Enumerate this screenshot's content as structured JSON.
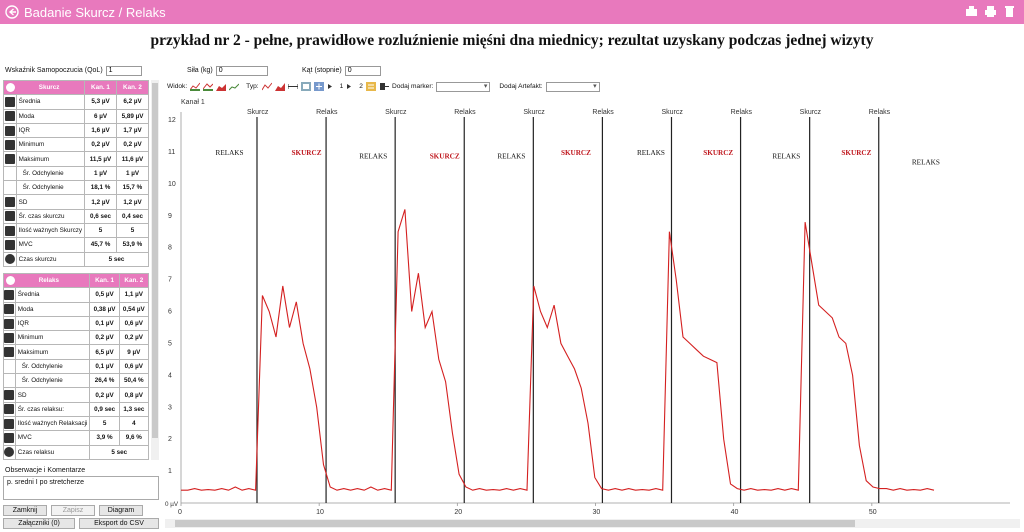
{
  "window": {
    "title": "Badanie Skurcz / Relaks"
  },
  "heading": "przykład nr 2 - pełne, prawidłowe rozluźnienie mięśni dna miednicy; rezultat uzyskany podczas jednej wizyty",
  "fields": {
    "qol_label": "Wskaźnik Samopoczucia (QoL)",
    "qol_value": "1",
    "force_label": "Siła (kg)",
    "force_value": "0",
    "angle_label": "Kąt (stopnie)",
    "angle_value": "0"
  },
  "contraction": {
    "header": [
      "Skurcz",
      "Kan. 1",
      "Kan. 2"
    ],
    "rows": [
      {
        "label": "Średnia",
        "c1": "5,3 µV",
        "c2": "6,2 µV",
        "icon": "mean-icon"
      },
      {
        "label": "Moda",
        "c1": "6 µV",
        "c2": "5,89 µV",
        "icon": "mode-icon"
      },
      {
        "label": "IQR",
        "c1": "1,6 µV",
        "c2": "1,7 µV",
        "icon": "iqr-icon"
      },
      {
        "label": "Minimum",
        "c1": "0,2 µV",
        "c2": "0,2 µV",
        "icon": "minimum-icon"
      },
      {
        "label": "Maksimum",
        "c1": "11,5 µV",
        "c2": "11,6 µV",
        "icon": "maximum-icon"
      },
      {
        "label": "Śr. Odchylenie",
        "c1": "1 µV",
        "c2": "1 µV",
        "icon": ""
      },
      {
        "label": "Śr. Odchylenie",
        "c1": "18,1 %",
        "c2": "15,7 %",
        "icon": ""
      },
      {
        "label": "SD",
        "c1": "1,2 µV",
        "c2": "1,2 µV",
        "icon": "sd-icon"
      },
      {
        "label": "Śr. czas skurczu",
        "c1": "0,6 sec",
        "c2": "0,4 sec",
        "icon": "duration-icon"
      },
      {
        "label": "Ilość ważnych Skurczy",
        "c1": "5",
        "c2": "5",
        "icon": "count-icon"
      },
      {
        "label": "MVC",
        "c1": "45,7 %",
        "c2": "53,9 %",
        "icon": "percent-icon"
      }
    ],
    "time_label": "Czas skurczu",
    "time_value": "5 sec"
  },
  "relax": {
    "header": [
      "Relaks",
      "Kan. 1",
      "Kan. 2"
    ],
    "rows": [
      {
        "label": "Średnia",
        "c1": "0,5 µV",
        "c2": "1,1 µV",
        "icon": "mean-icon"
      },
      {
        "label": "Moda",
        "c1": "0,38 µV",
        "c2": "0,54 µV",
        "icon": "mode-icon"
      },
      {
        "label": "IQR",
        "c1": "0,1 µV",
        "c2": "0,6 µV",
        "icon": "iqr-icon"
      },
      {
        "label": "Minimum",
        "c1": "0,2 µV",
        "c2": "0,2 µV",
        "icon": "minimum-icon"
      },
      {
        "label": "Maksimum",
        "c1": "6,5 µV",
        "c2": "9 µV",
        "icon": "maximum-icon"
      },
      {
        "label": "Śr. Odchylenie",
        "c1": "0,1 µV",
        "c2": "0,6 µV",
        "icon": ""
      },
      {
        "label": "Śr. Odchylenie",
        "c1": "26,4 %",
        "c2": "50,4 %",
        "icon": ""
      },
      {
        "label": "SD",
        "c1": "0,2 µV",
        "c2": "0,8 µV",
        "icon": "sd-icon"
      },
      {
        "label": "Śr. czas relaksu:",
        "c1": "0,9 sec",
        "c2": "1,3 sec",
        "icon": "duration-icon"
      },
      {
        "label": "Ilość ważnych Relaksacji",
        "c1": "5",
        "c2": "4",
        "icon": "count-icon"
      },
      {
        "label": "MVC",
        "c1": "3,9 %",
        "c2": "9,6 %",
        "icon": "percent-icon"
      }
    ],
    "time_label": "Czas relaksu",
    "time_value": "5 sec"
  },
  "observations": {
    "label": "Obserwacje i Komentarze",
    "text": "p. sredni I po stretcherze"
  },
  "buttons": {
    "close": "Zamknij",
    "save": "Zapisz",
    "diagram": "Diagram",
    "attachments": "Załączniki (0)",
    "export": "Eksport do CSV"
  },
  "toolbar": {
    "view_label": "Widok:",
    "type_label": "Typ:",
    "ch1": "1",
    "ch2": "2",
    "marker_label": "Dodaj marker:",
    "artifact_label": "Dodaj Artefakt:"
  },
  "chart_data": {
    "type": "line",
    "channel_label": "Kanał 1",
    "xlim": [
      0,
      60
    ],
    "ylim": [
      0,
      12
    ],
    "x_ticks": [
      0,
      10,
      20,
      30,
      40,
      50
    ],
    "y_ticks": [
      0,
      1,
      2,
      3,
      4,
      5,
      6,
      7,
      8,
      9,
      10,
      11,
      12
    ],
    "y_unit_label": "0 µV",
    "accent_color": "#d42020",
    "markers": [
      {
        "label": "Skurcz",
        "x": 5.5
      },
      {
        "label": "Relaks",
        "x": 10.5
      },
      {
        "label": "Skurcz",
        "x": 15.5
      },
      {
        "label": "Relaks",
        "x": 20.5
      },
      {
        "label": "Skurcz",
        "x": 25.5
      },
      {
        "label": "Relaks",
        "x": 30.5
      },
      {
        "label": "Skurcz",
        "x": 35.5
      },
      {
        "label": "Relaks",
        "x": 40.5
      },
      {
        "label": "Skurcz",
        "x": 45.5
      },
      {
        "label": "Relaks",
        "x": 50.5
      }
    ],
    "annotations": [
      {
        "text": "RELAKS",
        "x": 2.5,
        "y": 10.9,
        "color": "#111"
      },
      {
        "text": "SKURCZ",
        "x": 8,
        "y": 10.9,
        "color": "#c0181f"
      },
      {
        "text": "RELAKS",
        "x": 12.9,
        "y": 10.8,
        "color": "#111"
      },
      {
        "text": "SKURCZ",
        "x": 18,
        "y": 10.8,
        "color": "#c0181f"
      },
      {
        "text": "RELAKS",
        "x": 22.9,
        "y": 10.8,
        "color": "#111"
      },
      {
        "text": "SKURCZ",
        "x": 27.5,
        "y": 10.9,
        "color": "#c0181f"
      },
      {
        "text": "RELAKS",
        "x": 33,
        "y": 10.9,
        "color": "#111"
      },
      {
        "text": "SKURCZ",
        "x": 37.8,
        "y": 10.9,
        "color": "#c0181f"
      },
      {
        "text": "RELAKS",
        "x": 42.8,
        "y": 10.8,
        "color": "#111"
      },
      {
        "text": "SKURCZ",
        "x": 47.8,
        "y": 10.9,
        "color": "#c0181f"
      },
      {
        "text": "RELAKS",
        "x": 52.9,
        "y": 10.6,
        "color": "#111"
      }
    ],
    "series": [
      {
        "values": [
          0.4,
          0.4,
          0.45,
          0.4,
          0.42,
          0.4,
          0.45,
          0.4,
          0.5,
          0.4,
          0.45,
          0.4,
          6.5,
          6.0,
          5.2,
          6.8,
          5.5,
          6.3,
          5.0,
          4.2,
          3.0,
          1.2,
          0.5,
          0.4,
          0.45,
          0.4,
          0.45,
          0.4,
          0.5,
          0.4,
          0.45,
          0.4,
          8.5,
          9.2,
          6.0,
          7.2,
          5.5,
          6.0,
          4.5,
          3.8,
          2.2,
          0.9,
          0.5,
          0.4,
          0.45,
          0.4,
          0.42,
          0.4,
          0.45,
          0.4,
          0.45,
          0.4,
          6.8,
          6.0,
          5.5,
          6.2,
          5.0,
          4.6,
          4.2,
          3.6,
          2.5,
          0.8,
          0.45,
          0.4,
          0.45,
          0.4,
          0.45,
          0.4,
          0.42,
          0.4,
          0.45,
          0.4,
          8.5,
          7.0,
          5.2,
          5.0,
          4.8,
          4.6,
          4.5,
          4.4,
          2.0,
          0.6,
          0.45,
          0.4,
          0.45,
          0.4,
          0.42,
          0.4,
          0.45,
          0.4,
          0.45,
          0.4,
          8.8,
          7.5,
          6.2,
          6.0,
          5.8,
          5.2,
          5.0,
          4.0,
          1.8,
          0.7,
          0.5,
          0.45,
          0.45,
          0.4,
          0.45,
          0.4,
          0.42,
          0.4,
          0.45,
          0.4
        ]
      }
    ]
  }
}
